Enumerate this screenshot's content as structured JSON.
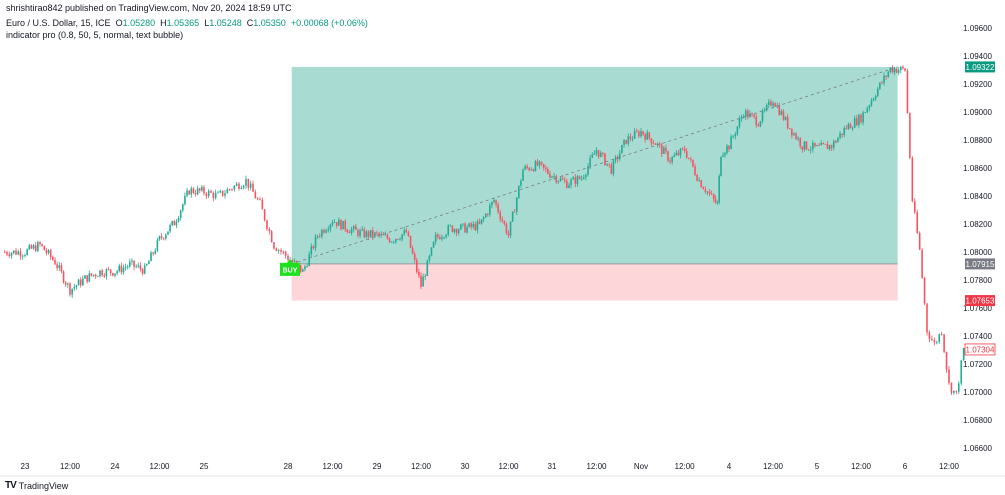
{
  "header": {
    "published": "shrishtirao842 published on TradingView.com, Nov 20, 2024 18:59 UTC",
    "symbol": "Euro / U.S. Dollar, 15, ICE",
    "open_label": "O",
    "open": "1.05280",
    "high_label": "H",
    "high": "1.05365",
    "low_label": "L",
    "low": "1.05248",
    "close_label": "C",
    "close": "1.05350",
    "change": "+0.00068 (+0.06%)",
    "indicator": "indicator pro (0.8, 50, 5, normal, text bubble)"
  },
  "footer": {
    "logo_text": "TradingView"
  },
  "chart_data": {
    "type": "candlestick",
    "interval": "15",
    "ylim": [
      1.0655,
      1.0965
    ],
    "y_ticks": [
      "1.09600",
      "1.09400",
      "1.09200",
      "1.09000",
      "1.08800",
      "1.08600",
      "1.08400",
      "1.08200",
      "1.08000",
      "1.07800",
      "1.07600",
      "1.07400",
      "1.07200",
      "1.07000",
      "1.06800",
      "1.06600"
    ],
    "x_ticks": [
      {
        "label": "23",
        "t": "10-23 00:00"
      },
      {
        "label": "12:00",
        "t": "10-23 12:00"
      },
      {
        "label": "24",
        "t": "10-24 00:00"
      },
      {
        "label": "12:00",
        "t": "10-24 12:00"
      },
      {
        "label": "25",
        "t": "10-25 00:00"
      },
      {
        "label": "28",
        "t": "10-28 00:00"
      },
      {
        "label": "12:00",
        "t": "10-28 12:00"
      },
      {
        "label": "29",
        "t": "10-29 00:00"
      },
      {
        "label": "12:00",
        "t": "10-29 12:00"
      },
      {
        "label": "30",
        "t": "10-30 00:00"
      },
      {
        "label": "12:00",
        "t": "10-30 12:00"
      },
      {
        "label": "31",
        "t": "10-31 00:00"
      },
      {
        "label": "12:00",
        "t": "10-31 12:00"
      },
      {
        "label": "Nov",
        "t": "11-01 00:00"
      },
      {
        "label": "12:00",
        "t": "11-01 12:00"
      },
      {
        "label": "4",
        "t": "11-04 00:00"
      },
      {
        "label": "12:00",
        "t": "11-04 12:00"
      },
      {
        "label": "5",
        "t": "11-05 00:00"
      },
      {
        "label": "12:00",
        "t": "11-05 12:00"
      },
      {
        "label": "6",
        "t": "11-06 00:00"
      },
      {
        "label": "12:00",
        "t": "11-06 12:00"
      }
    ],
    "price_path": [
      [
        "10-22 18:00",
        1.08
      ],
      [
        "10-23 00:00",
        1.08
      ],
      [
        "10-23 04:00",
        1.0805
      ],
      [
        "10-23 08:00",
        1.0793
      ],
      [
        "10-23 12:00",
        1.0773
      ],
      [
        "10-23 16:00",
        1.0781
      ],
      [
        "10-23 20:00",
        1.0786
      ],
      [
        "10-24 00:00",
        1.0786
      ],
      [
        "10-24 04:00",
        1.0791
      ],
      [
        "10-24 08:00",
        1.0787
      ],
      [
        "10-24 12:00",
        1.0809
      ],
      [
        "10-24 16:00",
        1.0821
      ],
      [
        "10-24 20:00",
        1.0844
      ],
      [
        "10-25 00:00",
        1.0843
      ],
      [
        "10-25 04:00",
        1.084
      ],
      [
        "10-25 08:00",
        1.0846
      ],
      [
        "10-25 12:00",
        1.0851
      ],
      [
        "10-25 16:00",
        1.0834
      ],
      [
        "10-25 20:00",
        1.0805
      ],
      [
        "10-28 00:00",
        1.0796
      ],
      [
        "10-28 04:00",
        1.0786
      ],
      [
        "10-28 08:00",
        1.0812
      ],
      [
        "10-28 12:00",
        1.0823
      ],
      [
        "10-28 16:00",
        1.0817
      ],
      [
        "10-28 20:00",
        1.0813
      ],
      [
        "10-29 00:00",
        1.0812
      ],
      [
        "10-29 04:00",
        1.0809
      ],
      [
        "10-29 08:00",
        1.0814
      ],
      [
        "10-29 12:00",
        1.0776
      ],
      [
        "10-29 16:00",
        1.081
      ],
      [
        "10-29 20:00",
        1.0817
      ],
      [
        "10-30 00:00",
        1.0817
      ],
      [
        "10-30 04:00",
        1.0819
      ],
      [
        "10-30 08:00",
        1.0837
      ],
      [
        "10-30 12:00",
        1.0812
      ],
      [
        "10-30 16:00",
        1.0859
      ],
      [
        "10-30 20:00",
        1.0862
      ],
      [
        "10-31 00:00",
        1.0855
      ],
      [
        "10-31 04:00",
        1.0849
      ],
      [
        "10-31 08:00",
        1.0853
      ],
      [
        "10-31 12:00",
        1.0873
      ],
      [
        "10-31 16:00",
        1.0859
      ],
      [
        "10-31 20:00",
        1.088
      ],
      [
        "11-01 00:00",
        1.0886
      ],
      [
        "11-01 04:00",
        1.0878
      ],
      [
        "11-01 08:00",
        1.0866
      ],
      [
        "11-01 12:00",
        1.0873
      ],
      [
        "11-01 16:00",
        1.0851
      ],
      [
        "11-01 20:00",
        1.0837
      ],
      [
        "11-01 21:00",
        1.0834
      ],
      [
        "11-03 22:00",
        1.0871
      ],
      [
        "11-04 00:00",
        1.0876
      ],
      [
        "11-04 04:00",
        1.09
      ],
      [
        "11-04 08:00",
        1.0893
      ],
      [
        "11-04 12:00",
        1.0909
      ],
      [
        "11-04 16:00",
        1.0891
      ],
      [
        "11-04 20:00",
        1.0876
      ],
      [
        "11-05 00:00",
        1.0874
      ],
      [
        "11-05 04:00",
        1.0876
      ],
      [
        "11-05 08:00",
        1.0889
      ],
      [
        "11-05 12:00",
        1.0896
      ],
      [
        "11-05 16:00",
        1.0914
      ],
      [
        "11-05 20:00",
        1.0931
      ],
      [
        "11-06 00:00",
        1.093
      ],
      [
        "11-06 02:00",
        1.0837
      ],
      [
        "11-06 04:00",
        1.0801
      ],
      [
        "11-06 06:00",
        1.0744
      ],
      [
        "11-06 08:00",
        1.0734
      ],
      [
        "11-06 10:00",
        1.0744
      ],
      [
        "11-06 12:00",
        1.0705
      ],
      [
        "11-06 14:00",
        1.0698
      ],
      [
        "11-06 16:00",
        1.07304
      ]
    ],
    "position": {
      "side": "long",
      "signal_label": "BUY",
      "start": "10-28 01:00",
      "end": "11-05 22:00",
      "entry": "1.07915",
      "target": "1.09322",
      "stop": "1.07653"
    },
    "last_price": "1.07304",
    "colors": {
      "up": "#22ab94",
      "down": "#f7525f",
      "target_zone": "#a8dcd3",
      "stop_zone": "#fcd6d9",
      "target_label": "#089981",
      "entry_label": "#787b86",
      "stop_label": "#f23645",
      "buy_bubble": "#1ee01e"
    }
  }
}
